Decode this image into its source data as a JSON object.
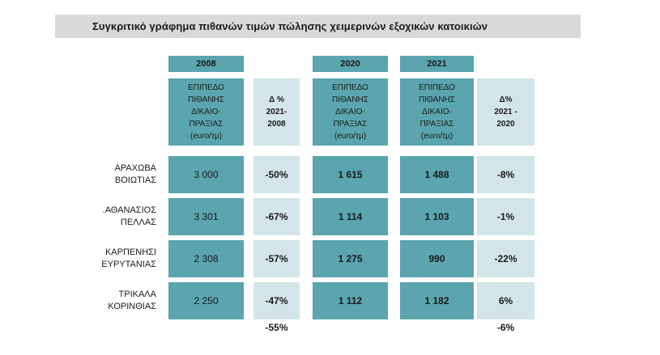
{
  "chart_data": {
    "type": "table",
    "title": "Συγκριτικό γράφημα πιθανών τιμών πώλησης χειμερινών εξοχικών κατοικιών",
    "year_headers": [
      "2008",
      "2020",
      "2021"
    ],
    "column_headers": [
      "ΕΠΙΠΕΔΟ\nΠΙΘΑΝΗΣ\nΔΙΚΑΙΟ-\nΠΡΑΞΙΑΣ\n(euro/τμ)",
      "Δ %\n2021-\n2008",
      "ΕΠΙΠΕΔΟ\nΠΙΘΑΝΗΣ\nΔΙΚΑΙΟ-\nΠΡΑΞΙΑΣ\n(euro/τμ)",
      "ΕΠΙΠΕΔΟ\nΠΙΘΑΝΗΣ\nΔΙΚΑΙΟ-\nΠΡΑΞΙΑΣ\n(euro/τμ)",
      "Δ%\n2021 -\n2020"
    ],
    "rows": [
      {
        "label": "ΑΡΑΧΩΒΑ\nΒΟΙΩΤΙΑΣ",
        "values": [
          "3 000",
          "-50%",
          "1 615",
          "1 488",
          "-8%"
        ]
      },
      {
        "label": ".ΑΘΑΝΑΣΙΟΣ\nΠΕΛΛΑΣ",
        "values": [
          "3 301",
          "-67%",
          "1 114",
          "1 103",
          "-1%"
        ]
      },
      {
        "label": "ΚΑΡΠΕΝΗΣΙ\nΕΥΡΥΤΑΝΙΑΣ",
        "values": [
          "2 308",
          "-57%",
          "1 275",
          "990",
          "-22%"
        ]
      },
      {
        "label": "ΤΡΙΚΑΛΑ\nΚΟΡΙΝΘΙΑΣ",
        "values": [
          "2 250",
          "-47%",
          "1 112",
          "1 182",
          "6%"
        ]
      }
    ],
    "totals": [
      "-55%",
      "-6%"
    ]
  },
  "colors": {
    "teal": "#5aa5ae",
    "light": "#d3e5e8",
    "title_bg": "#d9d9d9"
  }
}
